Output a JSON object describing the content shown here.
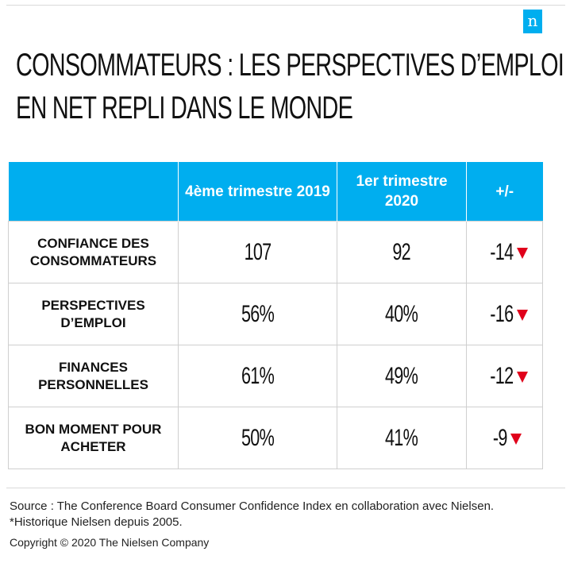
{
  "logo": {
    "letter": "n",
    "color": "#00aeef"
  },
  "title": {
    "line1": "CONSOMMATEURS : LES PERSPECTIVES D’EMPLOI",
    "line2": "EN NET REPLI DANS LE MONDE"
  },
  "table": {
    "header_color": "#00aeef",
    "down_color": "#e0001b",
    "headers": [
      "",
      "4ème trimestre 2019",
      "1er trimestre 2020",
      "+/-"
    ],
    "rows": [
      {
        "label": "CONFIANCE DES CONSOMMATEURS",
        "q4_2019": "107",
        "q1_2020": "92",
        "change": "-14",
        "trend_icon": "down-triangle-icon"
      },
      {
        "label": "PERSPECTIVES D’EMPLOI",
        "q4_2019": "56%",
        "q1_2020": "40%",
        "change": "-16",
        "trend_icon": "down-triangle-icon"
      },
      {
        "label": "FINANCES PERSONNELLES",
        "q4_2019": "61%",
        "q1_2020": "49%",
        "change": "-12",
        "trend_icon": "down-triangle-icon"
      },
      {
        "label": "BON MOMENT POUR ACHETER",
        "q4_2019": "50%",
        "q1_2020": "41%",
        "change": "-9",
        "trend_icon": "down-triangle-icon"
      }
    ]
  },
  "footer": {
    "source": "Source : The Conference Board Consumer Confidence Index en collaboration avec Nielsen.",
    "note": "*Historique Nielsen depuis 2005.",
    "copyright": "Copyright © 2020 The Nielsen Company"
  }
}
